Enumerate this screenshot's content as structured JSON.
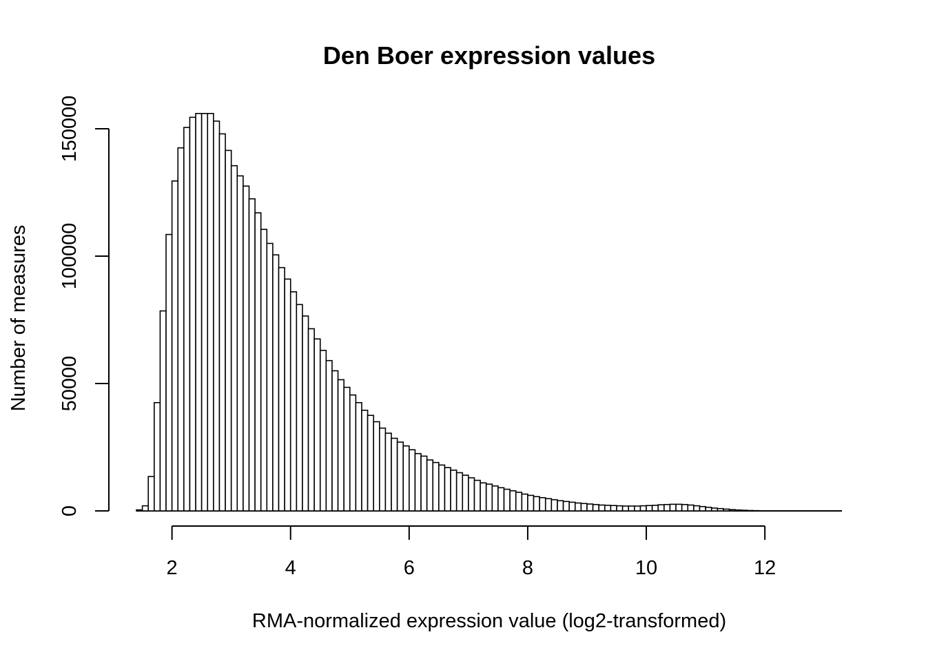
{
  "chart_data": {
    "type": "bar",
    "subtype": "histogram",
    "title": "Den Boer expression values",
    "xlabel": "RMA-normalized expression value (log2-transformed)",
    "ylabel": "Number of measures",
    "xlim": [
      1.4,
      13.3
    ],
    "ylim": [
      0,
      160000
    ],
    "x_ticks": [
      2,
      4,
      6,
      8,
      10,
      12
    ],
    "x_tick_labels": [
      "2",
      "4",
      "6",
      "8",
      "10",
      "12"
    ],
    "y_ticks": [
      0,
      50000,
      100000,
      150000
    ],
    "y_tick_labels": [
      "0",
      "50000",
      "100000",
      "150000"
    ],
    "bin_start": 1.4,
    "bin_width": 0.1,
    "values": [
      400,
      2000,
      13500,
      42500,
      78500,
      108500,
      129500,
      142500,
      150500,
      154500,
      156000,
      156000,
      156000,
      153000,
      148000,
      141500,
      135500,
      131500,
      127500,
      122500,
      117000,
      110500,
      105000,
      100500,
      95500,
      91000,
      86000,
      81000,
      76500,
      71500,
      67500,
      63000,
      59000,
      55000,
      51500,
      48500,
      45500,
      42500,
      39500,
      37500,
      35000,
      32500,
      30500,
      28500,
      27000,
      25500,
      24000,
      22500,
      21500,
      20000,
      19000,
      18000,
      17000,
      16000,
      15000,
      14000,
      13000,
      12000,
      11000,
      10500,
      9800,
      9100,
      8500,
      7900,
      7300,
      6600,
      6100,
      5600,
      5200,
      4800,
      4400,
      4000,
      3700,
      3400,
      3100,
      2900,
      2700,
      2500,
      2300,
      2200,
      2100,
      2000,
      1900,
      1900,
      1900,
      2000,
      2100,
      2200,
      2400,
      2500,
      2600,
      2600,
      2500,
      2300,
      2000,
      1700,
      1400,
      1100,
      900,
      700,
      500,
      350,
      250,
      150,
      100,
      60,
      40,
      20,
      10,
      5
    ]
  }
}
